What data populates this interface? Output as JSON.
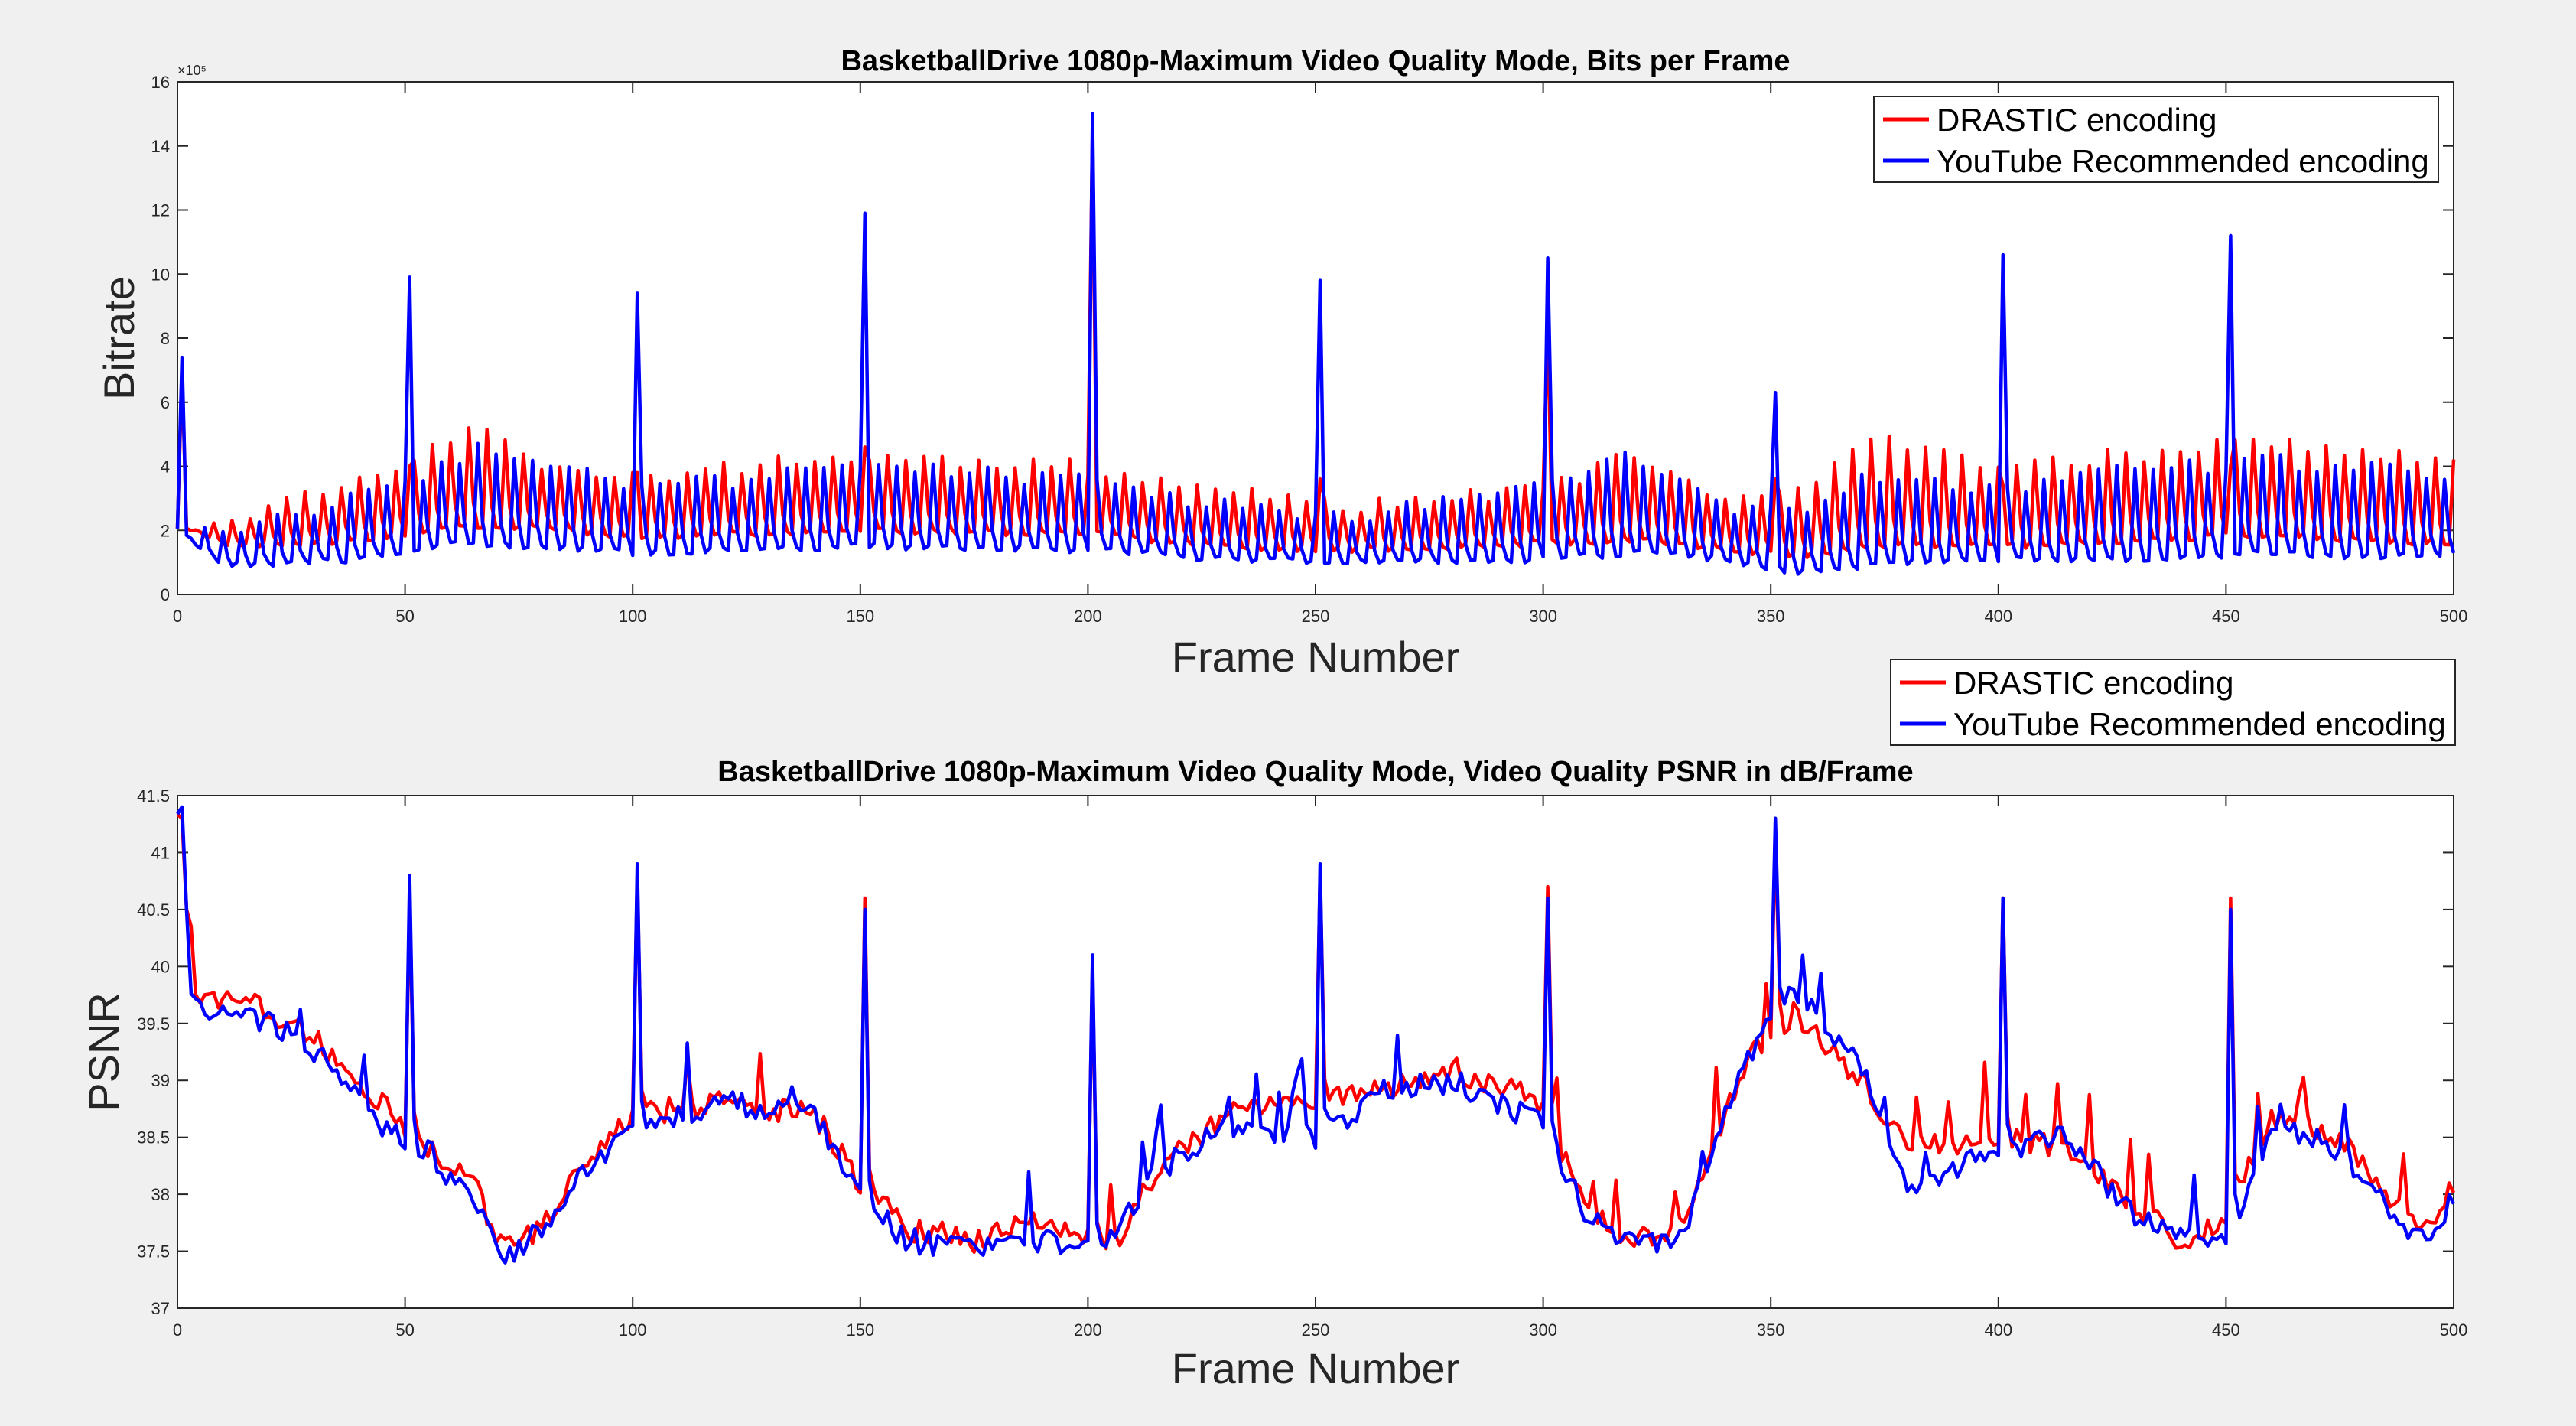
{
  "chart_data": [
    {
      "type": "line",
      "title": "BasketballDrive 1080p-Maximum Video Quality Mode, Bits per Frame",
      "xlabel": "Frame Number",
      "ylabel": "Bitrate",
      "y_exponent_label": "×10⁵",
      "y_multiplier": 100000,
      "xlim": [
        0,
        500
      ],
      "ylim": [
        0,
        16
      ],
      "x_ticks": [
        0,
        50,
        100,
        150,
        200,
        250,
        300,
        350,
        400,
        450,
        500
      ],
      "y_ticks": [
        0,
        2,
        4,
        6,
        8,
        10,
        12,
        14,
        16
      ],
      "grid": false,
      "legend_position": "top-right",
      "series": [
        {
          "name": "DRASTIC encoding",
          "color": "#ff0000",
          "base": [
            [
              0,
              2.2
            ],
            [
              10,
              1.4
            ],
            [
              40,
              1.6
            ],
            [
              60,
              2.0
            ],
            [
              80,
              2.0
            ],
            [
              100,
              1.7
            ],
            [
              150,
              1.9
            ],
            [
              200,
              1.8
            ],
            [
              230,
              1.4
            ],
            [
              260,
              1.3
            ],
            [
              300,
              1.5
            ],
            [
              320,
              1.6
            ],
            [
              340,
              1.3
            ],
            [
              355,
              1.1
            ],
            [
              380,
              1.5
            ],
            [
              400,
              1.4
            ],
            [
              430,
              1.6
            ],
            [
              460,
              1.8
            ],
            [
              480,
              1.6
            ],
            [
              500,
              1.5
            ]
          ],
          "peak": [
            [
              0,
              2.2
            ],
            [
              20,
              3.0
            ],
            [
              50,
              4.3
            ],
            [
              65,
              5.5
            ],
            [
              80,
              4.3
            ],
            [
              100,
              3.9
            ],
            [
              150,
              4.6
            ],
            [
              200,
              4.2
            ],
            [
              230,
              3.5
            ],
            [
              260,
              3.0
            ],
            [
              300,
              3.5
            ],
            [
              320,
              4.6
            ],
            [
              340,
              3.2
            ],
            [
              355,
              3.3
            ],
            [
              370,
              5.2
            ],
            [
              400,
              4.2
            ],
            [
              430,
              4.6
            ],
            [
              460,
              5.0
            ],
            [
              480,
              4.8
            ],
            [
              500,
              4.3
            ]
          ],
          "keyframes": [
            [
              1,
              7.0
            ],
            [
              51,
              4.0
            ],
            [
              101,
              3.8
            ],
            [
              151,
              4.6
            ],
            [
              201,
              14.5
            ],
            [
              251,
              3.6
            ],
            [
              301,
              8.5
            ],
            [
              351,
              3.6
            ],
            [
              401,
              3.4
            ],
            [
              451,
              4.0
            ]
          ]
        },
        {
          "name": "YouTube Recommended encoding",
          "color": "#0000ff",
          "base": [
            [
              0,
              2.0
            ],
            [
              10,
              0.8
            ],
            [
              40,
              1.0
            ],
            [
              60,
              1.5
            ],
            [
              80,
              1.4
            ],
            [
              100,
              1.2
            ],
            [
              150,
              1.4
            ],
            [
              200,
              1.3
            ],
            [
              230,
              1.0
            ],
            [
              260,
              0.9
            ],
            [
              300,
              1.0
            ],
            [
              320,
              1.2
            ],
            [
              340,
              1.0
            ],
            [
              355,
              0.6
            ],
            [
              380,
              0.9
            ],
            [
              400,
              1.0
            ],
            [
              430,
              1.0
            ],
            [
              460,
              1.2
            ],
            [
              480,
              1.1
            ],
            [
              500,
              1.2
            ]
          ],
          "peak": [
            [
              0,
              2.0
            ],
            [
              20,
              2.5
            ],
            [
              50,
              3.6
            ],
            [
              65,
              4.8
            ],
            [
              80,
              4.5
            ],
            [
              100,
              3.5
            ],
            [
              150,
              4.2
            ],
            [
              200,
              3.8
            ],
            [
              230,
              3.0
            ],
            [
              260,
              2.6
            ],
            [
              300,
              3.8
            ],
            [
              320,
              4.6
            ],
            [
              340,
              3.0
            ],
            [
              355,
              2.8
            ],
            [
              370,
              3.8
            ],
            [
              400,
              3.6
            ],
            [
              430,
              4.1
            ],
            [
              460,
              4.4
            ],
            [
              480,
              4.2
            ],
            [
              500,
              3.8
            ]
          ],
          "keyframes": [
            [
              1,
              7.4
            ],
            [
              51,
              9.9
            ],
            [
              101,
              9.4
            ],
            [
              151,
              11.9
            ],
            [
              201,
              15.0
            ],
            [
              251,
              9.8
            ],
            [
              301,
              10.5
            ],
            [
              351,
              6.3
            ],
            [
              401,
              10.6
            ],
            [
              451,
              11.2
            ]
          ]
        }
      ]
    },
    {
      "type": "line",
      "title": "BasketballDrive 1080p-Maximum Video Quality Mode, Video Quality PSNR in dB/Frame",
      "xlabel": "Frame Number",
      "ylabel": "PSNR",
      "xlim": [
        0,
        500
      ],
      "ylim": [
        37,
        41.5
      ],
      "x_ticks": [
        0,
        50,
        100,
        150,
        200,
        250,
        300,
        350,
        400,
        450,
        500
      ],
      "y_ticks": [
        37,
        37.5,
        38,
        38.5,
        39,
        39.5,
        40,
        40.5,
        41,
        41.5
      ],
      "grid": false,
      "legend_position": "above-right",
      "series": [
        {
          "name": "DRASTIC encoding",
          "color": "#ff0000",
          "trend": [
            [
              0,
              41.3
            ],
            [
              3,
              39.8
            ],
            [
              8,
              39.7
            ],
            [
              15,
              39.7
            ],
            [
              25,
              39.5
            ],
            [
              35,
              39.2
            ],
            [
              45,
              38.8
            ],
            [
              55,
              38.4
            ],
            [
              65,
              38.1
            ],
            [
              72,
              37.5
            ],
            [
              80,
              37.7
            ],
            [
              90,
              38.3
            ],
            [
              100,
              38.7
            ],
            [
              120,
              38.8
            ],
            [
              140,
              38.7
            ],
            [
              150,
              38.1
            ],
            [
              160,
              37.7
            ],
            [
              175,
              37.6
            ],
            [
              190,
              37.8
            ],
            [
              200,
              37.6
            ],
            [
              205,
              37.5
            ],
            [
              215,
              38.2
            ],
            [
              230,
              38.7
            ],
            [
              250,
              38.8
            ],
            [
              265,
              38.9
            ],
            [
              280,
              39.1
            ],
            [
              300,
              38.8
            ],
            [
              310,
              37.8
            ],
            [
              320,
              37.6
            ],
            [
              330,
              37.7
            ],
            [
              345,
              39.2
            ],
            [
              355,
              39.6
            ],
            [
              370,
              39.0
            ],
            [
              380,
              38.4
            ],
            [
              400,
              38.5
            ],
            [
              415,
              38.4
            ],
            [
              430,
              37.9
            ],
            [
              440,
              37.6
            ],
            [
              450,
              37.8
            ],
            [
              460,
              38.7
            ],
            [
              475,
              38.5
            ],
            [
              490,
              37.8
            ],
            [
              495,
              37.7
            ],
            [
              500,
              38.1
            ]
          ],
          "keyframes": [
            [
              1,
              41.3
            ],
            [
              51,
              40.6
            ],
            [
              101,
              40.8
            ],
            [
              151,
              40.6
            ],
            [
              201,
              40.0
            ],
            [
              251,
              40.8
            ],
            [
              301,
              40.7
            ],
            [
              351,
              41.2
            ],
            [
              401,
              40.6
            ],
            [
              451,
              40.6
            ]
          ]
        },
        {
          "name": "YouTube Recommended encoding",
          "color": "#0000ff",
          "trend": [
            [
              0,
              41.3
            ],
            [
              3,
              39.8
            ],
            [
              8,
              39.6
            ],
            [
              15,
              39.6
            ],
            [
              25,
              39.4
            ],
            [
              35,
              39.1
            ],
            [
              45,
              38.6
            ],
            [
              55,
              38.4
            ],
            [
              65,
              37.9
            ],
            [
              72,
              37.4
            ],
            [
              80,
              37.7
            ],
            [
              90,
              38.2
            ],
            [
              100,
              38.6
            ],
            [
              120,
              38.8
            ],
            [
              140,
              38.7
            ],
            [
              150,
              38.0
            ],
            [
              160,
              37.6
            ],
            [
              175,
              37.5
            ],
            [
              190,
              37.6
            ],
            [
              200,
              37.5
            ],
            [
              205,
              37.6
            ],
            [
              215,
              38.2
            ],
            [
              230,
              38.6
            ],
            [
              250,
              38.5
            ],
            [
              265,
              38.9
            ],
            [
              280,
              39.0
            ],
            [
              300,
              38.6
            ],
            [
              310,
              37.8
            ],
            [
              320,
              37.6
            ],
            [
              330,
              37.6
            ],
            [
              345,
              39.2
            ],
            [
              355,
              39.8
            ],
            [
              370,
              39.1
            ],
            [
              380,
              38.0
            ],
            [
              400,
              38.4
            ],
            [
              415,
              38.5
            ],
            [
              430,
              37.8
            ],
            [
              440,
              37.6
            ],
            [
              450,
              37.6
            ],
            [
              460,
              38.6
            ],
            [
              475,
              38.4
            ],
            [
              490,
              37.7
            ],
            [
              495,
              37.6
            ],
            [
              500,
              38.0
            ]
          ],
          "keyframes": [
            [
              1,
              41.4
            ],
            [
              51,
              40.8
            ],
            [
              101,
              40.9
            ],
            [
              151,
              40.5
            ],
            [
              201,
              40.1
            ],
            [
              251,
              40.9
            ],
            [
              301,
              40.6
            ],
            [
              351,
              41.3
            ],
            [
              401,
              40.6
            ],
            [
              451,
              40.5
            ]
          ]
        }
      ]
    }
  ]
}
